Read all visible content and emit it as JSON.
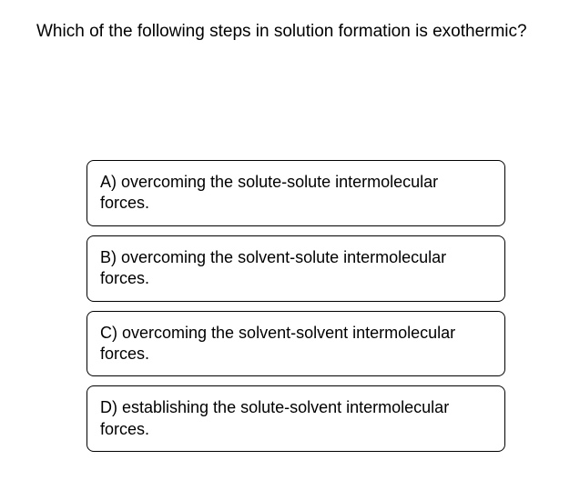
{
  "question": {
    "text": "Which of the following steps in solution formation is exothermic?",
    "fontsize": 19,
    "color": "#000000"
  },
  "options": [
    {
      "label": "A) overcoming the solute-solute intermolecular forces."
    },
    {
      "label": "B) overcoming the solvent-solute intermolecular forces."
    },
    {
      "label": "C) overcoming the solvent-solvent intermolecular forces."
    },
    {
      "label": "D) establishing the solute-solvent intermolecular forces."
    }
  ],
  "styling": {
    "background_color": "#ffffff",
    "option_border_color": "#000000",
    "option_border_radius": 8,
    "option_fontsize": 18,
    "font_family": "Arial"
  }
}
